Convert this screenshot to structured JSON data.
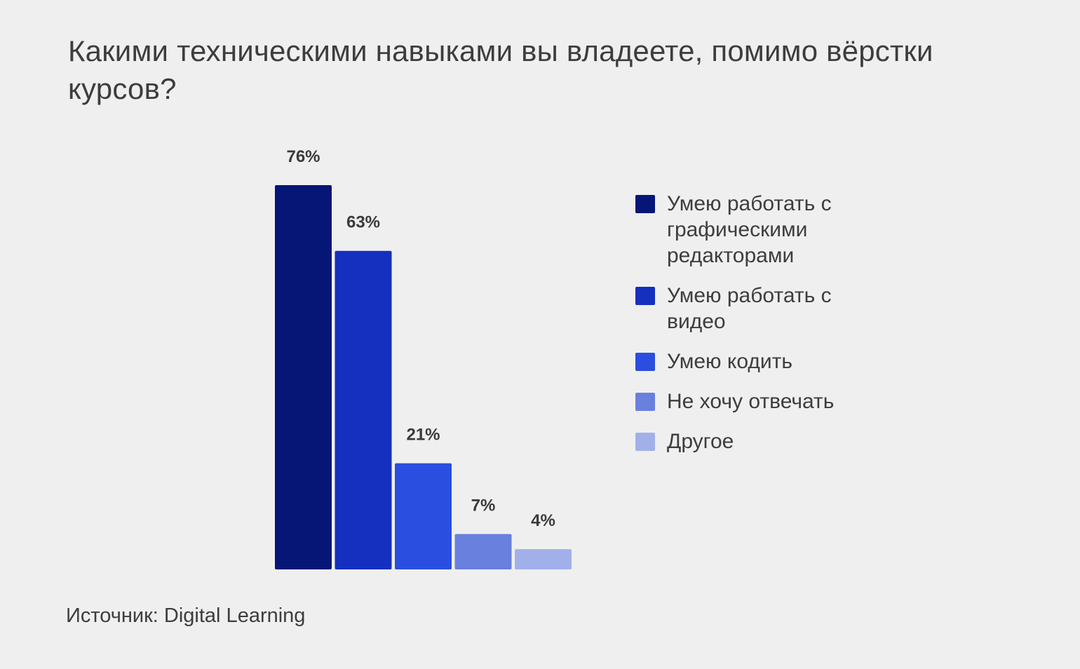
{
  "title": "Какими техническими навыками вы владеете, помимо вёрстки курсов?",
  "source": "Источник: Digital Learning",
  "chart_data": {
    "type": "bar",
    "title": "Какими техническими навыками вы владеете, помимо вёрстки курсов?",
    "categories": [
      "Умею работать с графическими редакторами",
      "Умею работать с видео",
      "Умею кодить",
      "Не хочу отвечать",
      "Другое"
    ],
    "values": [
      76,
      63,
      21,
      7,
      4
    ],
    "value_labels": [
      "76%",
      "63%",
      "21%",
      "7%",
      "4%"
    ],
    "colors": [
      "#051677",
      "#152fbf",
      "#2a4ee0",
      "#6a80de",
      "#a2b0ea"
    ],
    "unit": "%",
    "xlabel": "",
    "ylabel": "",
    "ylim": [
      0,
      76
    ],
    "grid": false,
    "legend_position": "right"
  }
}
